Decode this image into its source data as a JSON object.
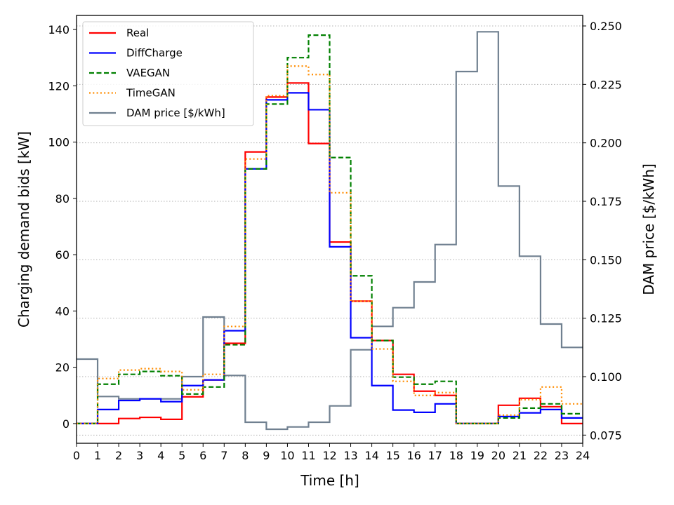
{
  "chart_data": {
    "type": "line",
    "subtype": "step",
    "xlabel": "Time [h]",
    "ylabel_left": "Charging demand bids [kW]",
    "ylabel_right": "DAM price [$/kWh]",
    "xlim": [
      0,
      24
    ],
    "ylim_left": [
      -7,
      145
    ],
    "ylim_right": [
      0.0715,
      0.2545
    ],
    "x_ticks": [
      "0",
      "1",
      "2",
      "3",
      "4",
      "5",
      "6",
      "7",
      "8",
      "9",
      "10",
      "11",
      "12",
      "13",
      "14",
      "15",
      "16",
      "17",
      "18",
      "19",
      "20",
      "21",
      "22",
      "23",
      "24"
    ],
    "y_ticks_left": [
      "0",
      "20",
      "40",
      "60",
      "80",
      "100",
      "120",
      "140"
    ],
    "y_ticks_right": [
      "0.075",
      "0.100",
      "0.125",
      "0.150",
      "0.175",
      "0.200",
      "0.225",
      "0.250"
    ],
    "grid": "horizontal dotted on right axis",
    "legend_position": "top-left",
    "series": [
      {
        "name": "Real",
        "axis": "left",
        "color": "#ff0000",
        "style": "solid",
        "values": [
          0,
          0,
          1.8,
          2.2,
          1.5,
          9.5,
          15.5,
          28.5,
          96.5,
          116,
          121,
          99.5,
          64.5,
          43.5,
          29.5,
          17.5,
          11.5,
          10,
          0,
          0,
          6.5,
          9,
          6,
          0
        ]
      },
      {
        "name": "DiffCharge",
        "axis": "left",
        "color": "#0000ff",
        "style": "solid",
        "values": [
          0,
          5,
          8.2,
          8.8,
          7.8,
          13.5,
          15.5,
          33,
          90.5,
          115,
          117.5,
          111.5,
          62.8,
          30.5,
          13.5,
          4.8,
          4,
          7,
          0,
          0,
          2.5,
          3.8,
          5,
          2
        ]
      },
      {
        "name": "VAEGAN",
        "axis": "left",
        "color": "#008000",
        "style": "dashed",
        "values": [
          0,
          14,
          17.5,
          18.5,
          17,
          10.5,
          13,
          28,
          90.5,
          113.5,
          130,
          138,
          94.5,
          52.5,
          29.5,
          16.5,
          14,
          15,
          0,
          0,
          2,
          5.5,
          7,
          3.5
        ]
      },
      {
        "name": "TimeGAN",
        "axis": "left",
        "color": "#ff8c00",
        "style": "dotted",
        "values": [
          0,
          16,
          19,
          19.5,
          18.5,
          12,
          17.5,
          34.5,
          94,
          116.5,
          127,
          124,
          82,
          43.5,
          26.5,
          15,
          10,
          11,
          0,
          0,
          3,
          8.5,
          13,
          7
        ]
      },
      {
        "name": "DAM price [$/kWh]",
        "axis": "right",
        "color": "#708090",
        "style": "solid",
        "values": [
          0.1075,
          0.0915,
          0.0905,
          0.0905,
          0.0905,
          0.1,
          0.1255,
          0.1005,
          0.0805,
          0.0775,
          0.0785,
          0.0805,
          0.0875,
          0.1115,
          0.1215,
          0.1295,
          0.1405,
          0.1565,
          0.2305,
          0.2475,
          0.1815,
          0.1515,
          0.1225,
          0.1125
        ]
      }
    ]
  }
}
